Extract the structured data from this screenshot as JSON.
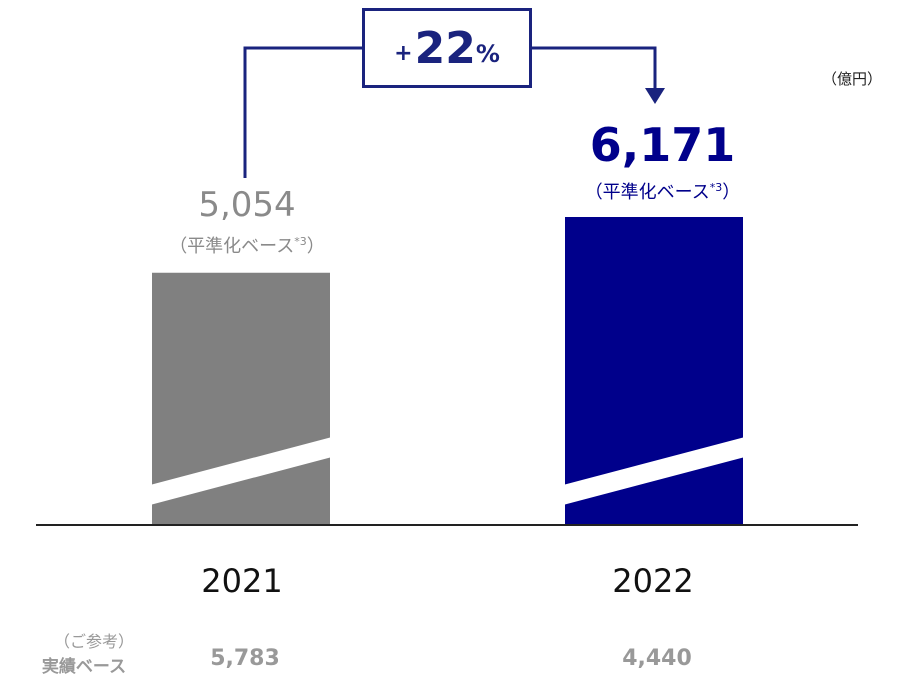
{
  "unit_label": "（億円）",
  "growth": {
    "prefix": "+",
    "number": "22",
    "suffix": "%"
  },
  "bars": [
    {
      "year": "2021",
      "value_text": "5,054",
      "note": "（平準化ベース",
      "note_sup": "*3",
      "note_end": "）",
      "actual": "5,783",
      "color": "#808080"
    },
    {
      "year": "2022",
      "value_text": "6,171",
      "note": "（平準化ベース",
      "note_sup": "*3",
      "note_end": "）",
      "actual": "4,440",
      "color": "#00008b"
    }
  ],
  "reference": {
    "header": "（ご参考）",
    "label": "実績ベース"
  },
  "chart_data": {
    "type": "bar",
    "categories": [
      "2021",
      "2022"
    ],
    "values": [
      5054,
      6171
    ],
    "colors": [
      "#808080",
      "#00008b"
    ],
    "axis_break": true,
    "growth_annotation": "+22%",
    "unit": "（億円）"
  }
}
